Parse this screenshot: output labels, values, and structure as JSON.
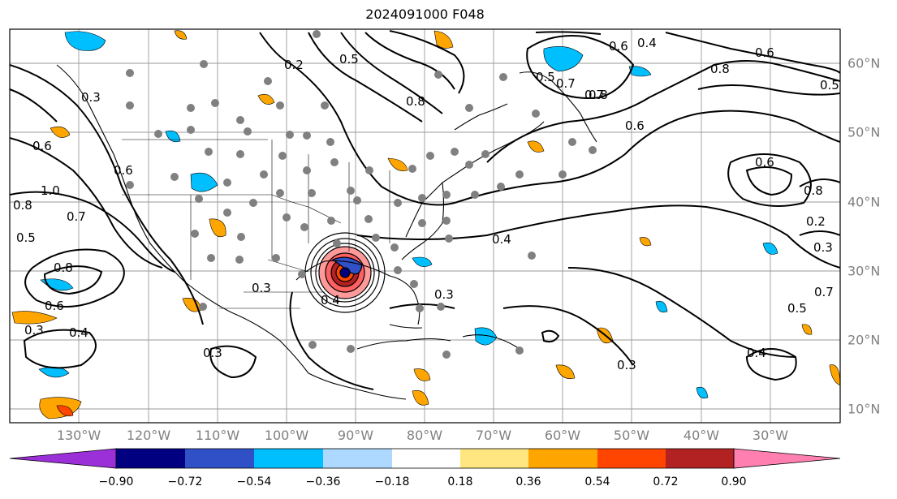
{
  "title": "2024091000 F048",
  "lon_labels": [
    "130°W",
    "120°W",
    "110°W",
    "100°W",
    "90°W",
    "80°W",
    "70°W",
    "60°W",
    "50°W",
    "40°W",
    "30°W"
  ],
  "lat_labels": [
    "60°N",
    "50°N",
    "40°N",
    "30°N",
    "20°N",
    "10°N"
  ],
  "colorbar": {
    "colors": [
      "#9b30d9",
      "#000080",
      "#3050c8",
      "#00bfff",
      "#add8ff",
      "#ffffff",
      "#ffe680",
      "#ffa500",
      "#ff4500",
      "#b22222",
      "#ff80b0"
    ],
    "labels": [
      "−0.90",
      "−0.72",
      "−0.54",
      "−0.36",
      "−0.18",
      "0.18",
      "0.36",
      "0.54",
      "0.72",
      "0.90"
    ]
  },
  "contour_labels": [
    "0.6",
    "1.0",
    "0.8",
    "0.7",
    "0.5",
    "0.8",
    "0.6",
    "0.3",
    "0.4",
    "0.3",
    "0.2",
    "0.5",
    "0.8",
    "0.7",
    "0.4",
    "0.3",
    "0.3",
    "0.6",
    "0.8",
    "0.6",
    "0.4",
    "0.7",
    "0.5",
    "0.8",
    "0.6",
    "0.5",
    "0.6",
    "0.8",
    "0.4",
    "0.2",
    "0.7",
    "0.5",
    "0.3",
    "0.4",
    "0.3",
    "0.6",
    "0.3"
  ]
}
